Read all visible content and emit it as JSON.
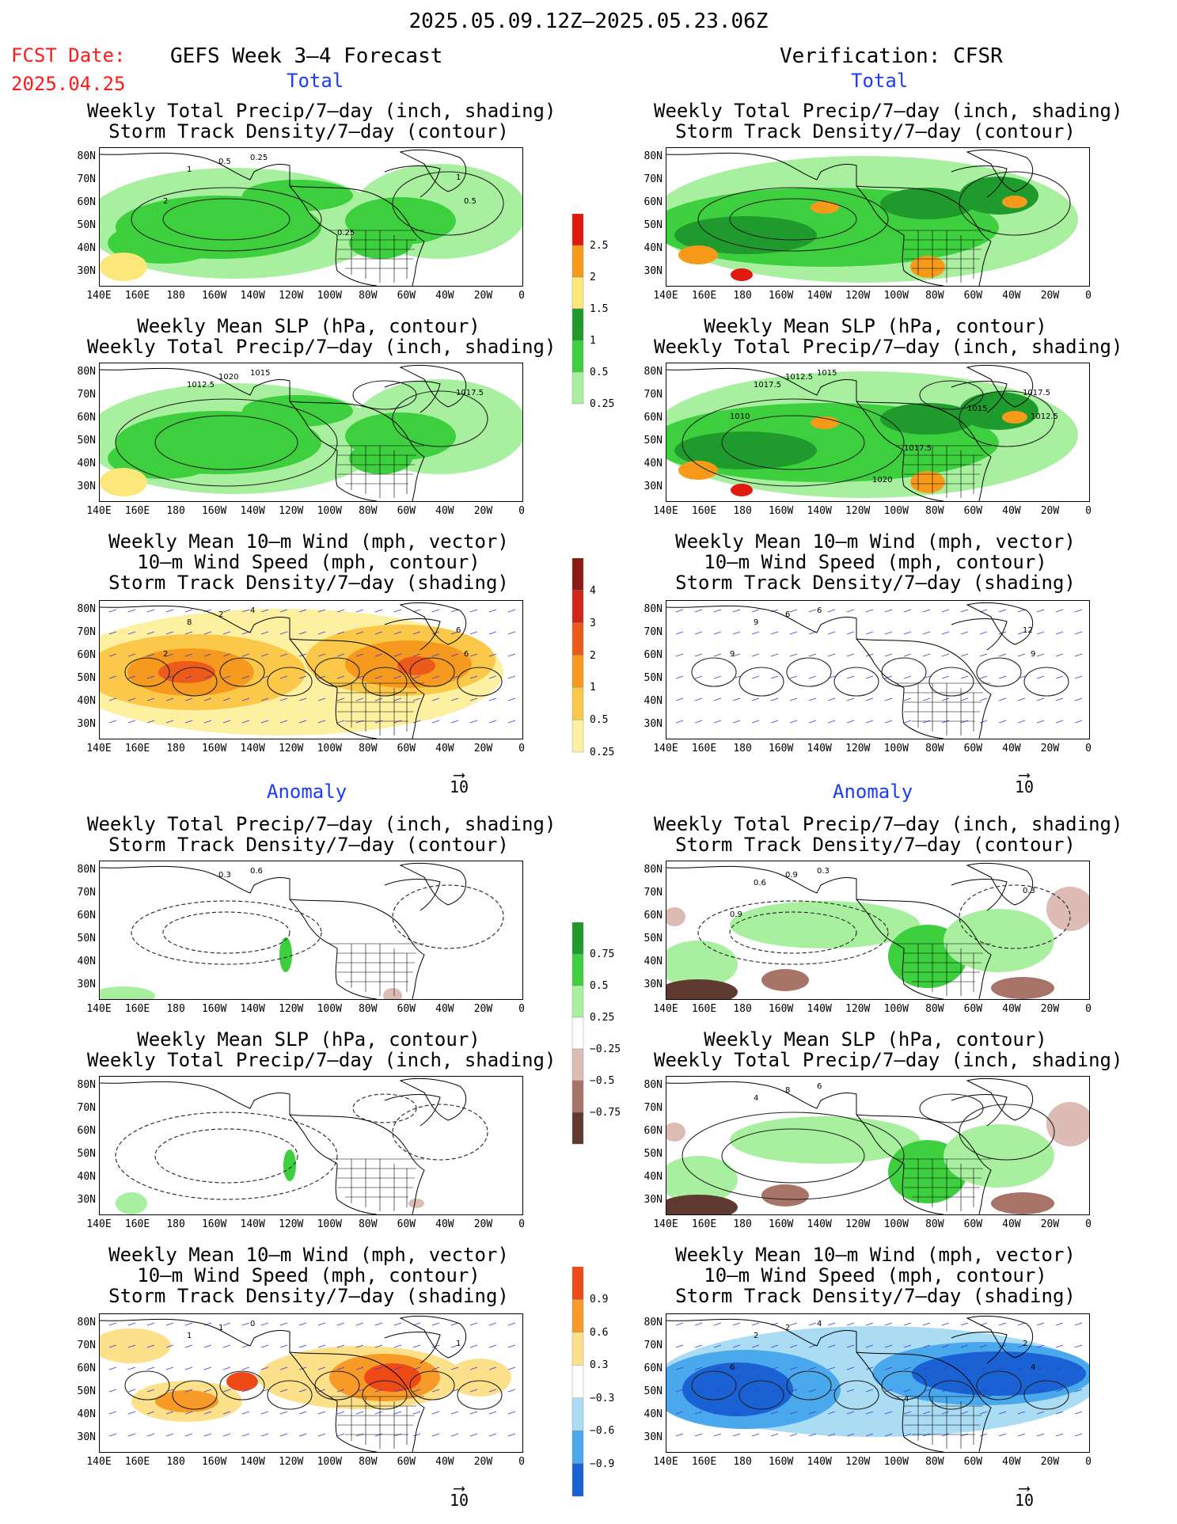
{
  "header": {
    "period": "2025.05.09.12Z–2025.05.23.06Z",
    "fcst_label": "FCST Date:",
    "fcst_date": "2025.04.25",
    "left_title": "GEFS Week 3–4 Forecast",
    "right_title": "Verification: CFSR"
  },
  "sections": {
    "total": "Total",
    "anomaly": "Anomaly"
  },
  "panel_titles": {
    "precip_storm": [
      "Weekly Total Precip/7–day (inch, shading)",
      "Storm Track Density/7–day (contour)"
    ],
    "slp_precip": [
      "Weekly Mean SLP (hPa, contour)",
      "Weekly Total Precip/7–day (inch, shading)"
    ],
    "wind": [
      "Weekly Mean 10–m Wind (mph, vector)",
      "10–m Wind Speed (mph, contour)",
      "Storm Track Density/7–day (shading)"
    ]
  },
  "axes": {
    "lat_labels": [
      "80N",
      "70N",
      "60N",
      "50N",
      "40N",
      "30N"
    ],
    "lon_labels": [
      "140E",
      "160E",
      "180",
      "160W",
      "140W",
      "120W",
      "100W",
      "80W",
      "60W",
      "40W",
      "20W",
      "0"
    ]
  },
  "vector_ref": "10",
  "colorbars": {
    "precip_total": {
      "labels": [
        "2.5",
        "2",
        "1.5",
        "1",
        "0.5",
        "0.25"
      ],
      "colors": [
        "#e11a10",
        "#f79a1a",
        "#fce77a",
        "#1f9b2d",
        "#3ecf3e",
        "#a8f0a0"
      ]
    },
    "storm_total": {
      "labels": [
        "4",
        "3",
        "2",
        "1",
        "0.5",
        "0.25"
      ],
      "colors": [
        "#8a1a12",
        "#d42418",
        "#ee5a1a",
        "#f59a1e",
        "#fbc84a",
        "#fdf0a0"
      ]
    },
    "precip_anom": {
      "labels": [
        "0.75",
        "0.5",
        "0.25",
        "−0.25",
        "−0.5",
        "−0.75"
      ],
      "colors": [
        "#1f9b2d",
        "#3ecf3e",
        "#a8f0a0",
        "#ffffff",
        "#dcbcb4",
        "#a87468",
        "#5e3a30"
      ]
    },
    "storm_anom": {
      "labels": [
        "0.9",
        "0.6",
        "0.3",
        "−0.3",
        "−0.6",
        "−0.9"
      ],
      "colors": [
        "#ee4a18",
        "#f89a28",
        "#fde08a",
        "#ffffff",
        "#aadcf4",
        "#4aa8ec",
        "#1a62d4"
      ]
    }
  },
  "contour_labels": {
    "p1L": [
      "0.5",
      "0.25",
      "1",
      "1",
      "2",
      "0.5",
      "0.25"
    ],
    "p1R": [],
    "p2L": [
      "1020",
      "1015",
      "1012.5",
      "1017.5"
    ],
    "p2R": [
      "1012.5",
      "1015",
      "1017.5",
      "1017.5",
      "1010",
      "1012.5",
      "1017.5",
      "1015",
      "1020"
    ],
    "p3L": [
      "2",
      "4",
      "8",
      "6",
      "2",
      "6"
    ],
    "p3R": [
      "6",
      "6",
      "9",
      "12",
      "9",
      "9"
    ],
    "p4L": [
      "0.3",
      "0.6"
    ],
    "p4R": [
      "0.9",
      "0.3",
      "0.6",
      "0.3",
      "0.9"
    ],
    "p5L": [],
    "p5R": [
      "8",
      "6",
      "4"
    ],
    "p6L": [
      "1",
      "0",
      "1",
      "1"
    ],
    "p6R": [
      "2",
      "4",
      "2",
      "2",
      "6",
      "4",
      "4"
    ]
  }
}
